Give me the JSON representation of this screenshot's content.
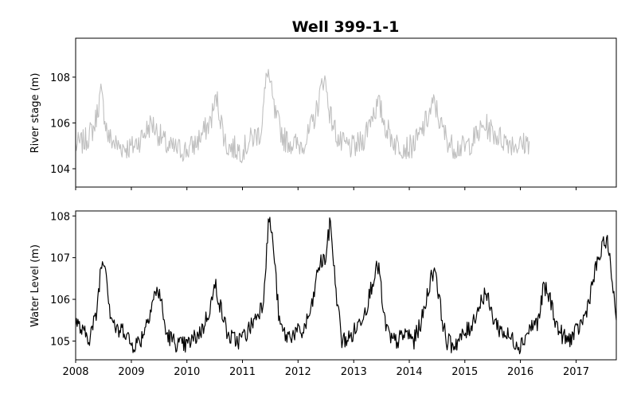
{
  "chart_data": [
    {
      "type": "line",
      "title": "Well 399-1-1",
      "ylabel": "River stage (m)",
      "xlabel": "",
      "ylim": [
        103.2,
        109.7
      ],
      "yticks": [
        104,
        106,
        108
      ],
      "xticks": [],
      "grid": false,
      "series": [
        {
          "color": "#c0c0c0",
          "x": [
            "2008-01-01",
            "2008-03-01",
            "2008-05-01",
            "2008-06-15",
            "2008-08-01",
            "2008-10-01",
            "2009-01-01",
            "2009-03-01",
            "2009-05-15",
            "2009-07-01",
            "2009-09-01",
            "2010-01-01",
            "2010-03-01",
            "2010-06-01",
            "2010-07-15",
            "2010-09-15",
            "2011-01-01",
            "2011-03-01",
            "2011-05-01",
            "2011-06-15",
            "2011-08-01",
            "2011-10-01",
            "2012-01-01",
            "2012-03-01",
            "2012-05-01",
            "2012-06-20",
            "2012-08-01",
            "2012-10-01",
            "2013-01-01",
            "2013-03-01",
            "2013-05-01",
            "2013-06-15",
            "2013-08-01",
            "2013-10-01",
            "2014-01-01",
            "2014-03-01",
            "2014-05-01",
            "2014-06-15",
            "2014-08-01",
            "2014-10-01",
            "2015-01-01",
            "2015-03-01",
            "2015-05-15",
            "2015-07-01",
            "2015-09-01",
            "2016-01-01",
            "2016-02-28"
          ],
          "y": [
            105.0,
            105.2,
            105.8,
            107.3,
            105.4,
            105.0,
            104.9,
            105.3,
            106.0,
            105.5,
            104.9,
            104.8,
            105.1,
            106.0,
            107.1,
            105.0,
            104.8,
            105.3,
            105.6,
            108.4,
            106.4,
            105.3,
            105.0,
            105.3,
            106.5,
            108.1,
            106.3,
            105.1,
            104.9,
            105.2,
            106.4,
            106.8,
            105.8,
            105.1,
            104.9,
            105.3,
            106.2,
            106.9,
            105.8,
            105.0,
            104.9,
            105.3,
            105.9,
            105.6,
            105.3,
            105.0,
            105.2
          ]
        }
      ]
    },
    {
      "type": "line",
      "title": "",
      "ylabel": "Water Level (m)",
      "xlabel": "",
      "ylim": [
        104.55,
        108.12
      ],
      "yticks": [
        105,
        106,
        107,
        108
      ],
      "xticks": [
        "2008",
        "2009",
        "2010",
        "2011",
        "2012",
        "2013",
        "2014",
        "2015",
        "2016",
        "2017"
      ],
      "grid": false,
      "series": [
        {
          "color": "#000000",
          "x": [
            "2008-01-01",
            "2008-02-15",
            "2008-04-01",
            "2008-05-15",
            "2008-06-15",
            "2008-07-10",
            "2008-08-15",
            "2008-10-01",
            "2008-11-15",
            "2009-01-01",
            "2009-03-01",
            "2009-04-15",
            "2009-06-01",
            "2009-07-05",
            "2009-08-15",
            "2009-10-01",
            "2009-11-15",
            "2010-01-01",
            "2010-03-01",
            "2010-04-15",
            "2010-06-01",
            "2010-07-10",
            "2010-08-10",
            "2010-10-01",
            "2010-12-01",
            "2011-02-01",
            "2011-04-01",
            "2011-05-15",
            "2011-06-25",
            "2011-07-25",
            "2011-09-01",
            "2011-10-15",
            "2011-12-15",
            "2012-02-01",
            "2012-04-01",
            "2012-05-15",
            "2012-07-01",
            "2012-08-01",
            "2012-09-01",
            "2012-10-15",
            "2012-12-15",
            "2013-02-01",
            "2013-04-01",
            "2013-05-15",
            "2013-06-15",
            "2013-07-15",
            "2013-09-01",
            "2013-10-15",
            "2013-12-15",
            "2014-02-01",
            "2014-04-01",
            "2014-05-15",
            "2014-06-20",
            "2014-07-20",
            "2014-09-01",
            "2014-10-15",
            "2014-12-15",
            "2015-02-01",
            "2015-04-01",
            "2015-05-15",
            "2015-07-01",
            "2015-08-15",
            "2015-10-15",
            "2016-01-01",
            "2016-03-01",
            "2016-05-01",
            "2016-06-01",
            "2016-07-15",
            "2016-09-01",
            "2016-11-01",
            "2017-01-01",
            "2017-03-01",
            "2017-05-15",
            "2017-07-20",
            "2017-09-01",
            "2017-09-22"
          ],
          "y": [
            105.5,
            105.2,
            105.1,
            105.6,
            106.8,
            107.0,
            105.7,
            105.2,
            105.3,
            104.9,
            105.0,
            105.5,
            106.1,
            106.2,
            105.2,
            105.0,
            104.9,
            104.9,
            105.1,
            105.3,
            105.8,
            106.35,
            105.8,
            105.1,
            105.0,
            105.2,
            105.6,
            105.9,
            108.0,
            107.2,
            105.4,
            105.1,
            105.2,
            105.2,
            105.8,
            106.8,
            107.0,
            107.9,
            106.4,
            105.0,
            105.1,
            105.4,
            105.9,
            106.6,
            106.8,
            105.6,
            105.0,
            105.0,
            105.2,
            105.0,
            105.6,
            106.4,
            106.8,
            105.9,
            105.0,
            104.9,
            105.1,
            105.3,
            105.8,
            106.2,
            105.6,
            105.3,
            105.1,
            104.9,
            105.3,
            105.5,
            106.3,
            106.0,
            105.3,
            105.0,
            105.2,
            105.6,
            106.8,
            107.5,
            106.3,
            105.5
          ]
        }
      ]
    }
  ]
}
